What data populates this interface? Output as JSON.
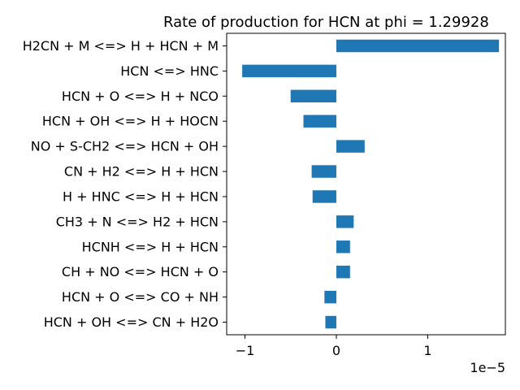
{
  "chart_data": {
    "type": "bar",
    "orientation": "horizontal",
    "title": "Rate of production for HCN at phi = 1.29928",
    "xlabel": "",
    "ylabel": "",
    "x_scale_label": "1e−5",
    "xlim": [
      -1.2,
      1.85
    ],
    "x_ticks": [
      -1,
      0,
      1
    ],
    "x_tick_labels": [
      "−1",
      "0",
      "1"
    ],
    "grid": false,
    "legend": "none",
    "bar_color": "#1f77b4",
    "categories": [
      "H2CN + M <=> H + HCN + M",
      "HCN <=> HNC",
      "HCN + O <=> H + NCO",
      "HCN + OH <=> H + HOCN",
      "NO + S-CH2 <=> HCN + OH",
      "CN + H2 <=> H + HCN",
      "H + HNC <=> H + HCN",
      "CH3 + N <=> H2 + HCN",
      "HCNH <=> H + HCN",
      "CH + NO <=> HCN + O",
      "HCN + O <=> CO + NH",
      "HCN + OH <=> CN + H2O"
    ],
    "values": [
      1.78,
      -1.03,
      -0.5,
      -0.36,
      0.31,
      -0.27,
      -0.26,
      0.19,
      0.15,
      0.15,
      -0.13,
      -0.12
    ]
  }
}
